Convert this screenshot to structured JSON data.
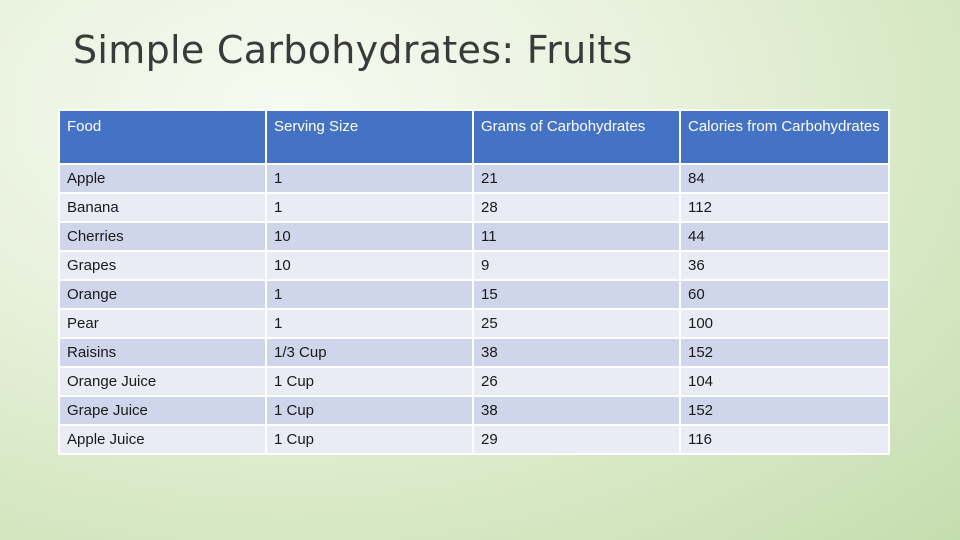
{
  "slide": {
    "title": "Simple Carbohydrates: Fruits"
  },
  "table": {
    "headers": [
      "Food",
      "Serving Size",
      "Grams of Carbohydrates",
      "Calories from Carbohydrates"
    ],
    "rows": [
      [
        "Apple",
        "1",
        "21",
        "84"
      ],
      [
        "Banana",
        "1",
        "28",
        "112"
      ],
      [
        "Cherries",
        "10",
        "11",
        "44"
      ],
      [
        "Grapes",
        "10",
        "9",
        "36"
      ],
      [
        "Orange",
        "1",
        "15",
        "60"
      ],
      [
        "Pear",
        "1",
        "25",
        "100"
      ],
      [
        "Raisins",
        "1/3 Cup",
        "38",
        "152"
      ],
      [
        "Orange Juice",
        "1 Cup",
        "26",
        "104"
      ],
      [
        "Grape Juice",
        "1 Cup",
        "38",
        "152"
      ],
      [
        "Apple Juice",
        "1 Cup",
        "29",
        "116"
      ]
    ]
  },
  "colors": {
    "header_bg": "#4472c4",
    "row_odd_bg": "#cfd5ea",
    "row_even_bg": "#e9ebf5"
  }
}
